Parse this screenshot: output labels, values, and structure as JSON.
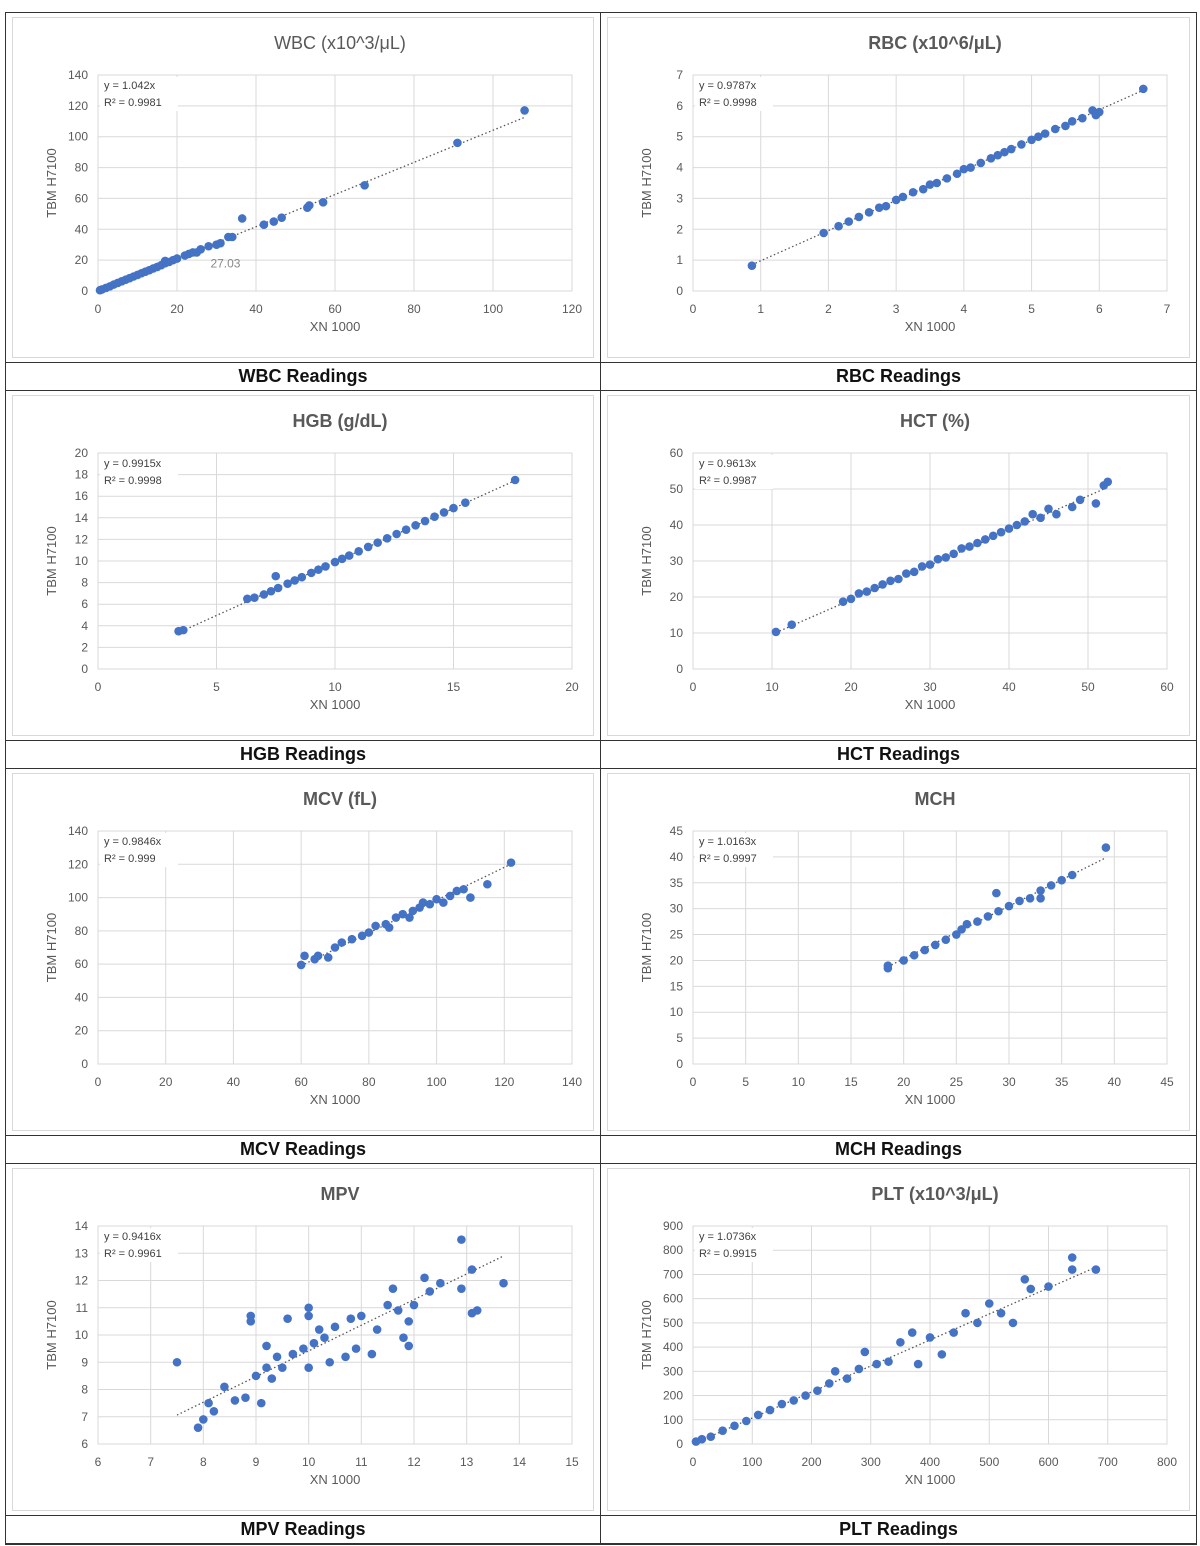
{
  "chart_data": [
    {
      "type": "scatter",
      "title": "WBC (x10^3/μL)",
      "caption": "WBC Readings",
      "xlabel": "XN 1000",
      "ylabel": "TBM H7100",
      "equation": "y = 1.042x",
      "r2": "R² = 0.9981",
      "slope": 1.042,
      "annotation": "27.03",
      "annotation_at": [
        31,
        27
      ],
      "xlim": [
        0,
        120
      ],
      "ylim": [
        0,
        140
      ],
      "xticks": [
        0,
        20,
        40,
        60,
        80,
        100,
        120
      ],
      "yticks": [
        0,
        20,
        40,
        60,
        80,
        100,
        120,
        140
      ],
      "points": [
        [
          0.5,
          0.5
        ],
        [
          1,
          1
        ],
        [
          2,
          2
        ],
        [
          3,
          3
        ],
        [
          4,
          4.2
        ],
        [
          5,
          5.2
        ],
        [
          6,
          6.3
        ],
        [
          7,
          7.3
        ],
        [
          8,
          8.3
        ],
        [
          9,
          9.4
        ],
        [
          10,
          10.4
        ],
        [
          11,
          11.5
        ],
        [
          12,
          12.5
        ],
        [
          13,
          13.5
        ],
        [
          14,
          14.6
        ],
        [
          15,
          15.6
        ],
        [
          16,
          16.7
        ],
        [
          17,
          18
        ],
        [
          17,
          19.5
        ],
        [
          18,
          18.8
        ],
        [
          19,
          20
        ],
        [
          20,
          21
        ],
        [
          22,
          23
        ],
        [
          23,
          24
        ],
        [
          24,
          25
        ],
        [
          25,
          25
        ],
        [
          26,
          27
        ],
        [
          28,
          29
        ],
        [
          30,
          30
        ],
        [
          31,
          31
        ],
        [
          33,
          35
        ],
        [
          34,
          35
        ],
        [
          36.5,
          47
        ],
        [
          42,
          43
        ],
        [
          44.5,
          45
        ],
        [
          46.5,
          47.5
        ],
        [
          53,
          54
        ],
        [
          53.5,
          55.5
        ],
        [
          57,
          57.5
        ],
        [
          67.5,
          68.5
        ],
        [
          91,
          96
        ],
        [
          108,
          117
        ]
      ]
    },
    {
      "type": "scatter",
      "title": "RBC  (x10^6/μL)",
      "caption": "RBC Readings",
      "xlabel": "XN 1000",
      "ylabel": "TBM H7100",
      "equation": "y = 0.9787x",
      "r2": "R² = 0.9998",
      "slope": 0.9787,
      "xlim": [
        0,
        7
      ],
      "ylim": [
        0,
        7
      ],
      "xticks": [
        0,
        1,
        2,
        3,
        4,
        5,
        6,
        7
      ],
      "yticks": [
        0,
        1,
        2,
        3,
        4,
        5,
        6,
        7
      ],
      "points": [
        [
          0.87,
          0.82
        ],
        [
          1.93,
          1.88
        ],
        [
          2.15,
          2.1
        ],
        [
          2.3,
          2.25
        ],
        [
          2.45,
          2.4
        ],
        [
          2.6,
          2.55
        ],
        [
          2.75,
          2.7
        ],
        [
          2.85,
          2.75
        ],
        [
          3.0,
          2.95
        ],
        [
          3.1,
          3.05
        ],
        [
          3.25,
          3.2
        ],
        [
          3.4,
          3.3
        ],
        [
          3.5,
          3.45
        ],
        [
          3.6,
          3.5
        ],
        [
          3.75,
          3.65
        ],
        [
          3.9,
          3.8
        ],
        [
          4.0,
          3.95
        ],
        [
          4.1,
          4.0
        ],
        [
          4.25,
          4.15
        ],
        [
          4.4,
          4.3
        ],
        [
          4.5,
          4.4
        ],
        [
          4.6,
          4.5
        ],
        [
          4.7,
          4.6
        ],
        [
          4.85,
          4.75
        ],
        [
          5.0,
          4.9
        ],
        [
          5.1,
          5.0
        ],
        [
          5.2,
          5.1
        ],
        [
          5.35,
          5.25
        ],
        [
          5.5,
          5.35
        ],
        [
          5.6,
          5.5
        ],
        [
          5.75,
          5.6
        ],
        [
          5.9,
          5.85
        ],
        [
          5.95,
          5.7
        ],
        [
          6.0,
          5.8
        ],
        [
          6.65,
          6.55
        ]
      ]
    },
    {
      "type": "scatter",
      "title": "HGB (g/dL)",
      "caption": "HGB Readings",
      "xlabel": "XN 1000",
      "ylabel": "TBM H7100",
      "equation": "y = 0.9915x",
      "r2": "R² = 0.9998",
      "slope": 0.9915,
      "xlim": [
        0,
        20
      ],
      "ylim": [
        0,
        20
      ],
      "xticks": [
        0,
        5,
        10,
        15,
        20
      ],
      "yticks": [
        0,
        2,
        4,
        6,
        8,
        10,
        12,
        14,
        16,
        18,
        20
      ],
      "points": [
        [
          3.4,
          3.5
        ],
        [
          3.6,
          3.6
        ],
        [
          6.3,
          6.5
        ],
        [
          6.6,
          6.6
        ],
        [
          7.0,
          6.9
        ],
        [
          7.3,
          7.2
        ],
        [
          7.6,
          7.5
        ],
        [
          7.5,
          8.6
        ],
        [
          8,
          7.9
        ],
        [
          8.3,
          8.2
        ],
        [
          8.6,
          8.5
        ],
        [
          9,
          8.9
        ],
        [
          9.3,
          9.2
        ],
        [
          9.6,
          9.5
        ],
        [
          10,
          9.9
        ],
        [
          10.3,
          10.2
        ],
        [
          10.6,
          10.5
        ],
        [
          11,
          10.9
        ],
        [
          11.4,
          11.3
        ],
        [
          11.8,
          11.7
        ],
        [
          12.2,
          12.1
        ],
        [
          12.6,
          12.5
        ],
        [
          13,
          12.9
        ],
        [
          13.4,
          13.3
        ],
        [
          13.8,
          13.7
        ],
        [
          14.2,
          14.1
        ],
        [
          14.6,
          14.5
        ],
        [
          15,
          14.9
        ],
        [
          15.5,
          15.4
        ],
        [
          17.6,
          17.5
        ]
      ]
    },
    {
      "type": "scatter",
      "title": "HCT (%)",
      "caption": "HCT Readings",
      "xlabel": "XN 1000",
      "ylabel": "TBM H7100",
      "equation": "y = 0.9613x",
      "r2": "R² = 0.9987",
      "slope": 0.9613,
      "xlim": [
        0,
        60
      ],
      "ylim": [
        0,
        60
      ],
      "xticks": [
        0,
        10,
        20,
        30,
        40,
        50,
        60
      ],
      "yticks": [
        0,
        10,
        20,
        30,
        40,
        50,
        60
      ],
      "points": [
        [
          10.5,
          10.3
        ],
        [
          12.5,
          12.3
        ],
        [
          19,
          18.7
        ],
        [
          20,
          19.5
        ],
        [
          21,
          21
        ],
        [
          22,
          21.5
        ],
        [
          23,
          22.5
        ],
        [
          24,
          23.5
        ],
        [
          25,
          24.5
        ],
        [
          26,
          25
        ],
        [
          27,
          26.5
        ],
        [
          28,
          27
        ],
        [
          29,
          28.5
        ],
        [
          30,
          29
        ],
        [
          31,
          30.5
        ],
        [
          32,
          31
        ],
        [
          33,
          32
        ],
        [
          34,
          33.5
        ],
        [
          35,
          34
        ],
        [
          36,
          35
        ],
        [
          37,
          36
        ],
        [
          38,
          37
        ],
        [
          39,
          38
        ],
        [
          40,
          39
        ],
        [
          41,
          40
        ],
        [
          42,
          41
        ],
        [
          43,
          43
        ],
        [
          44,
          42
        ],
        [
          45,
          44.5
        ],
        [
          46,
          43
        ],
        [
          48,
          45
        ],
        [
          49,
          47
        ],
        [
          51,
          46
        ],
        [
          52,
          51
        ],
        [
          52.5,
          52
        ]
      ]
    },
    {
      "type": "scatter",
      "title": "MCV (fL)",
      "caption": "MCV Readings",
      "xlabel": "XN 1000",
      "ylabel": "TBM H7100",
      "equation": "y = 0.9846x",
      "r2": "R² = 0.999",
      "slope": 0.9846,
      "xlim": [
        0,
        140
      ],
      "ylim": [
        0,
        140
      ],
      "xticks": [
        0,
        20,
        40,
        60,
        80,
        100,
        120,
        140
      ],
      "yticks": [
        0,
        20,
        40,
        60,
        80,
        100,
        120,
        140
      ],
      "points": [
        [
          60,
          59.5
        ],
        [
          61,
          65
        ],
        [
          64,
          63
        ],
        [
          65,
          65
        ],
        [
          68,
          64
        ],
        [
          70,
          70
        ],
        [
          72,
          73
        ],
        [
          75,
          75
        ],
        [
          78,
          77
        ],
        [
          80,
          79
        ],
        [
          82,
          83
        ],
        [
          85,
          84
        ],
        [
          86,
          82
        ],
        [
          88,
          88
        ],
        [
          90,
          90
        ],
        [
          92,
          88
        ],
        [
          93,
          92
        ],
        [
          95,
          94
        ],
        [
          96,
          97
        ],
        [
          98,
          96
        ],
        [
          100,
          99
        ],
        [
          102,
          97
        ],
        [
          104,
          101
        ],
        [
          106,
          104
        ],
        [
          108,
          105
        ],
        [
          110,
          100
        ],
        [
          115,
          108
        ],
        [
          122,
          121
        ]
      ]
    },
    {
      "type": "scatter",
      "title": "MCH",
      "caption": "MCH Readings",
      "xlabel": "XN 1000",
      "ylabel": "TBM H7100",
      "equation": "y = 1.0163x",
      "r2": "R² = 0.9997",
      "slope": 1.0163,
      "xlim": [
        0,
        45
      ],
      "ylim": [
        0,
        45
      ],
      "xticks": [
        0,
        5,
        10,
        15,
        20,
        25,
        30,
        35,
        40,
        45
      ],
      "yticks": [
        0,
        5,
        10,
        15,
        20,
        25,
        30,
        35,
        40,
        45
      ],
      "points": [
        [
          18.5,
          19
        ],
        [
          18.5,
          18.5
        ],
        [
          20,
          20
        ],
        [
          21,
          21
        ],
        [
          22,
          22
        ],
        [
          23,
          23
        ],
        [
          24,
          24
        ],
        [
          25,
          25
        ],
        [
          25.5,
          26
        ],
        [
          26,
          27
        ],
        [
          27,
          27.5
        ],
        [
          28,
          28.5
        ],
        [
          28.8,
          33
        ],
        [
          29,
          29.5
        ],
        [
          30,
          30.5
        ],
        [
          31,
          31.5
        ],
        [
          32,
          32
        ],
        [
          33,
          32
        ],
        [
          33,
          33.5
        ],
        [
          34,
          34.5
        ],
        [
          35,
          35.5
        ],
        [
          36,
          36.5
        ],
        [
          39.2,
          41.8
        ]
      ]
    },
    {
      "type": "scatter",
      "title": "MPV",
      "caption": "MPV Readings",
      "xlabel": "XN 1000",
      "ylabel": "TBM H7100",
      "equation": "y = 0.9416x",
      "r2": "R² = 0.9961",
      "slope": 0.9416,
      "xlim": [
        6,
        15
      ],
      "ylim": [
        6,
        14
      ],
      "xticks": [
        6,
        7,
        8,
        9,
        10,
        11,
        12,
        13,
        14,
        15
      ],
      "yticks": [
        6,
        7,
        8,
        9,
        10,
        11,
        12,
        13,
        14
      ],
      "points": [
        [
          7.5,
          9.0
        ],
        [
          7.9,
          6.6
        ],
        [
          8,
          6.9
        ],
        [
          8.1,
          7.5
        ],
        [
          8.2,
          7.2
        ],
        [
          8.4,
          8.1
        ],
        [
          8.6,
          7.6
        ],
        [
          8.8,
          7.7
        ],
        [
          8.9,
          10.7
        ],
        [
          8.9,
          10.5
        ],
        [
          9,
          8.5
        ],
        [
          9.1,
          7.5
        ],
        [
          9.2,
          8.8
        ],
        [
          9.2,
          9.6
        ],
        [
          9.3,
          8.4
        ],
        [
          9.4,
          9.2
        ],
        [
          9.5,
          8.8
        ],
        [
          9.6,
          10.6
        ],
        [
          9.7,
          9.3
        ],
        [
          9.9,
          9.5
        ],
        [
          10,
          11
        ],
        [
          10,
          10.7
        ],
        [
          10,
          8.8
        ],
        [
          10.1,
          9.7
        ],
        [
          10.2,
          10.2
        ],
        [
          10.3,
          9.9
        ],
        [
          10.4,
          9.0
        ],
        [
          10.5,
          10.3
        ],
        [
          10.7,
          9.2
        ],
        [
          10.8,
          10.6
        ],
        [
          10.9,
          9.5
        ],
        [
          11,
          10.7
        ],
        [
          11.2,
          9.3
        ],
        [
          11.3,
          10.2
        ],
        [
          11.5,
          11.1
        ],
        [
          11.6,
          11.7
        ],
        [
          11.7,
          10.9
        ],
        [
          11.8,
          9.9
        ],
        [
          11.9,
          10.5
        ],
        [
          11.9,
          9.6
        ],
        [
          12,
          11.1
        ],
        [
          12.2,
          12.1
        ],
        [
          12.3,
          11.6
        ],
        [
          12.5,
          11.9
        ],
        [
          12.9,
          13.5
        ],
        [
          12.9,
          11.7
        ],
        [
          13.1,
          12.4
        ],
        [
          13.1,
          10.8
        ],
        [
          13.2,
          10.9
        ],
        [
          13.7,
          11.9
        ]
      ]
    },
    {
      "type": "scatter",
      "title": "PLT (x10^3/μL)",
      "caption": "PLT Readings",
      "xlabel": "XN 1000",
      "ylabel": "TBM H7100",
      "equation": "y = 1.0736x",
      "r2": "R² = 0.9915",
      "slope": 1.0736,
      "xlim": [
        0,
        800
      ],
      "ylim": [
        0,
        900
      ],
      "xticks": [
        0,
        100,
        200,
        300,
        400,
        500,
        600,
        700,
        800
      ],
      "yticks": [
        0,
        100,
        200,
        300,
        400,
        500,
        600,
        700,
        800,
        900
      ],
      "points": [
        [
          5,
          10
        ],
        [
          15,
          20
        ],
        [
          30,
          30
        ],
        [
          50,
          55
        ],
        [
          70,
          75
        ],
        [
          90,
          95
        ],
        [
          110,
          120
        ],
        [
          130,
          140
        ],
        [
          150,
          165
        ],
        [
          170,
          180
        ],
        [
          190,
          200
        ],
        [
          210,
          220
        ],
        [
          230,
          250
        ],
        [
          240,
          300
        ],
        [
          260,
          270
        ],
        [
          280,
          310
        ],
        [
          290,
          380
        ],
        [
          310,
          330
        ],
        [
          330,
          340
        ],
        [
          350,
          420
        ],
        [
          370,
          460
        ],
        [
          380,
          330
        ],
        [
          400,
          440
        ],
        [
          420,
          370
        ],
        [
          440,
          460
        ],
        [
          460,
          540
        ],
        [
          480,
          500
        ],
        [
          500,
          580
        ],
        [
          520,
          540
        ],
        [
          540,
          500
        ],
        [
          560,
          680
        ],
        [
          570,
          640
        ],
        [
          600,
          650
        ],
        [
          640,
          770
        ],
        [
          640,
          720
        ],
        [
          680,
          720
        ]
      ]
    }
  ],
  "colors": {
    "point": "#4472c4",
    "grid": "#d9d9d9",
    "text": "#595959"
  }
}
